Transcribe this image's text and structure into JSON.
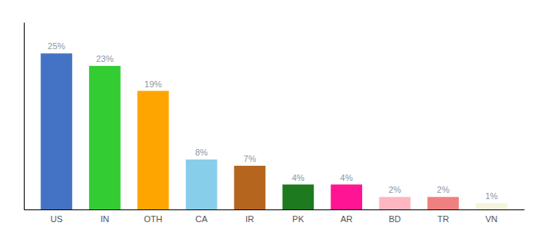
{
  "chart_data": {
    "type": "bar",
    "categories": [
      "US",
      "IN",
      "OTH",
      "CA",
      "IR",
      "PK",
      "AR",
      "BD",
      "TR",
      "VN"
    ],
    "values": [
      25,
      23,
      19,
      8,
      7,
      4,
      4,
      2,
      2,
      1
    ],
    "value_labels": [
      "25%",
      "23%",
      "19%",
      "8%",
      "7%",
      "4%",
      "4%",
      "2%",
      "2%",
      "1%"
    ],
    "colors": [
      "#4472C4",
      "#33CC33",
      "#FFA500",
      "#87CEEB",
      "#B5651D",
      "#1E7A1E",
      "#FF1493",
      "#FFB6C1",
      "#F08080",
      "#F5F5DC"
    ],
    "ylim": [
      0,
      30
    ],
    "data_labels": true,
    "tick_labels": "x"
  }
}
